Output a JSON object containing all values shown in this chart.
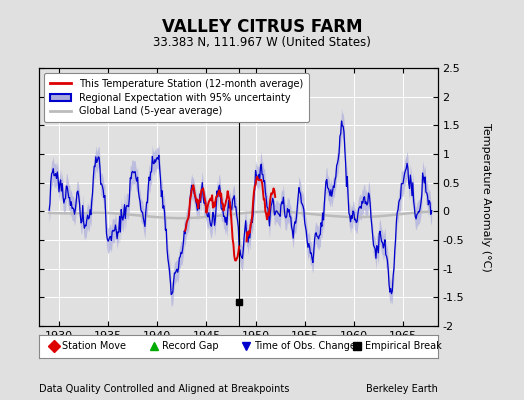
{
  "title": "VALLEY CITRUS FARM",
  "subtitle": "33.383 N, 111.967 W (United States)",
  "ylabel": "Temperature Anomaly (°C)",
  "xlabel_left": "Data Quality Controlled and Aligned at Breakpoints",
  "xlabel_right": "Berkeley Earth",
  "ylim": [
    -2.0,
    2.5
  ],
  "xlim": [
    1928.0,
    1968.5
  ],
  "xticks": [
    1930,
    1935,
    1940,
    1945,
    1950,
    1955,
    1960,
    1965
  ],
  "yticks": [
    -2,
    -1.5,
    -1,
    -0.5,
    0,
    0.5,
    1,
    1.5,
    2,
    2.5
  ],
  "bg_color": "#e0e0e0",
  "plot_bg_color": "#e0e0e0",
  "grid_color": "#ffffff",
  "station_line_color": "#dd0000",
  "regional_line_color": "#0000cc",
  "regional_fill_color": "#aaaadd",
  "global_line_color": "#bbbbbb",
  "obs_change_x": 1948.3,
  "empirical_break_x": 1948.3,
  "empirical_break_y": -1.58
}
